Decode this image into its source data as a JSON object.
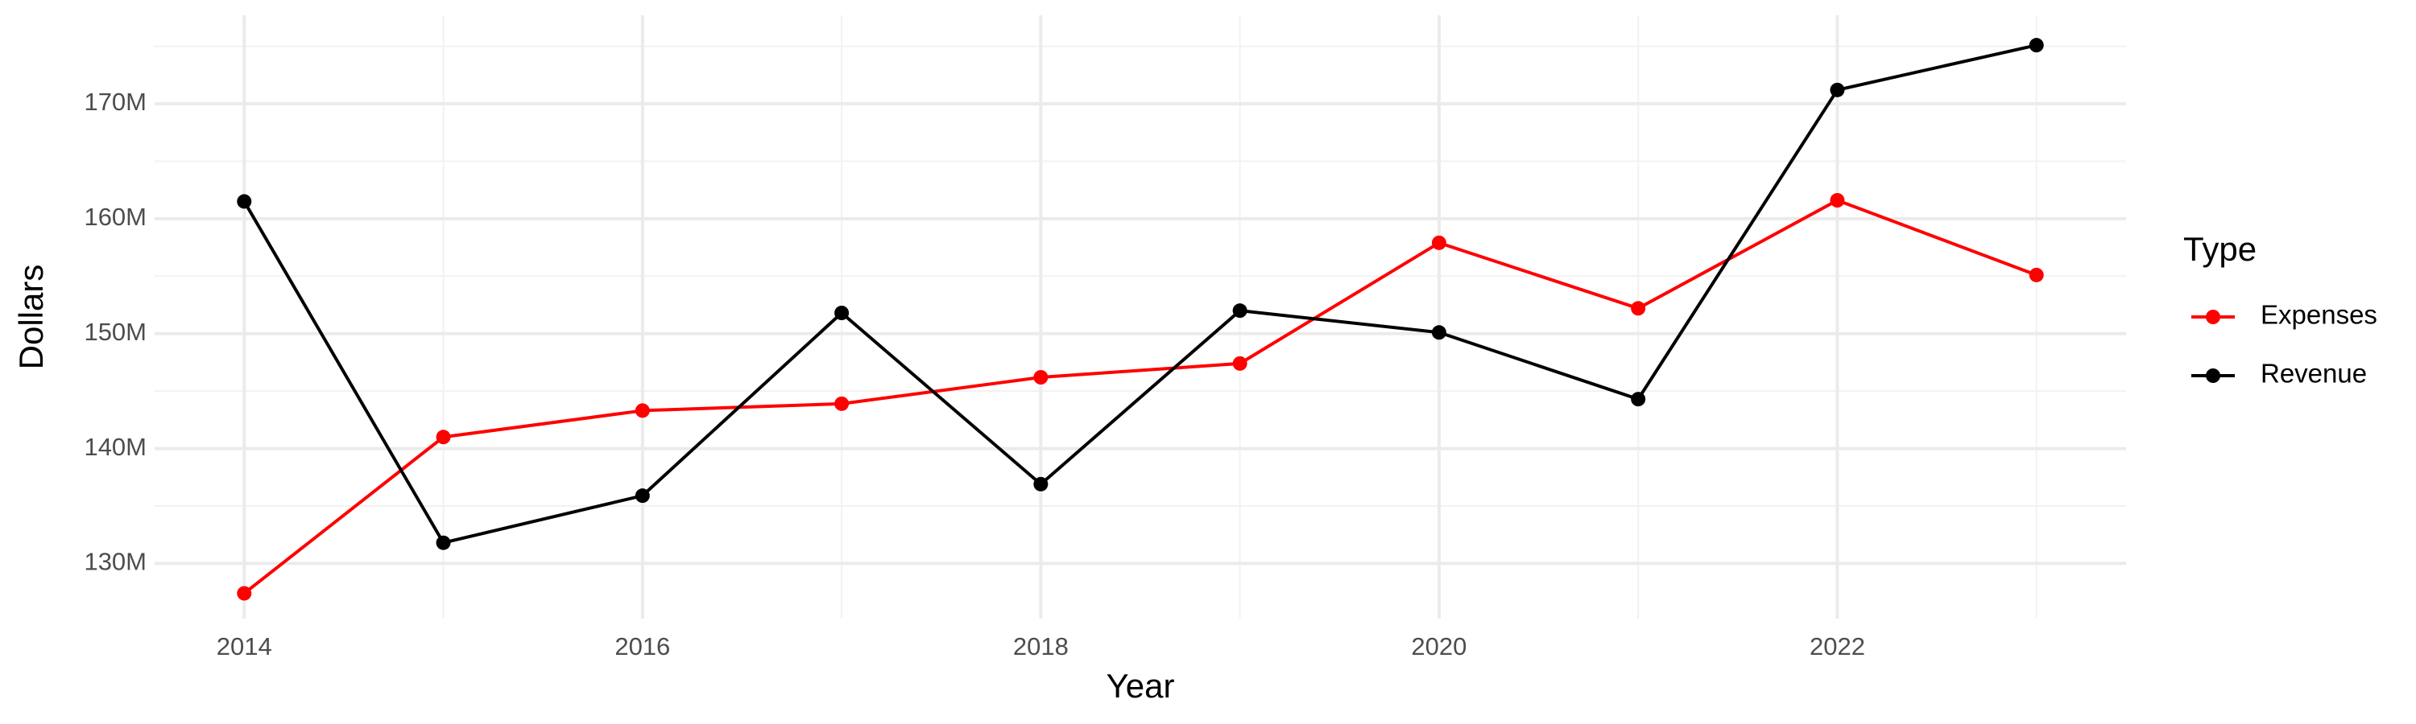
{
  "chart_data": {
    "type": "line",
    "x_label": "Year",
    "y_label": "Dollars",
    "legend_title": "Type",
    "legend_position": "right",
    "grid": true,
    "x": [
      2014,
      2015,
      2016,
      2017,
      2018,
      2019,
      2020,
      2021,
      2022,
      2023
    ],
    "xlim": [
      2013.55,
      2023.45
    ],
    "xticks": [
      2014,
      2016,
      2018,
      2020,
      2022
    ],
    "ylim": [
      125200000,
      177700000
    ],
    "yticks": [
      {
        "value": 130000000,
        "label": "130M"
      },
      {
        "value": 140000000,
        "label": "140M"
      },
      {
        "value": 150000000,
        "label": "150M"
      },
      {
        "value": 160000000,
        "label": "160M"
      },
      {
        "value": 170000000,
        "label": "170M"
      }
    ],
    "series": [
      {
        "name": "Expenses",
        "color": "#ff0000",
        "values": [
          127400000,
          141000000,
          143300000,
          143900000,
          146200000,
          147400000,
          157900000,
          152200000,
          161600000,
          155100000
        ]
      },
      {
        "name": "Revenue",
        "color": "#000000",
        "values": [
          161500000,
          131800000,
          135900000,
          151800000,
          136900000,
          152000000,
          150100000,
          144300000,
          171200000,
          175100000
        ]
      }
    ]
  }
}
